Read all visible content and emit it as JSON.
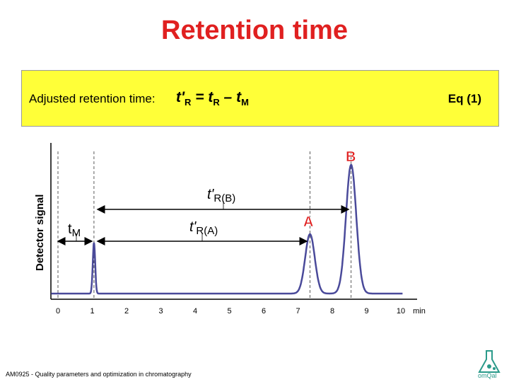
{
  "slide": {
    "title": "Retention time",
    "footer": "AM0925 - Quality parameters and optimization in chromatography"
  },
  "equation": {
    "label": "Adjusted retention time:",
    "lhs": "t'",
    "lhs_sub": "R",
    "eq": " = ",
    "t1": "t",
    "t1_sub": "R",
    "minus": " – ",
    "t2": "t",
    "t2_sub": "M",
    "number": "Eq (1)"
  },
  "chart_data": {
    "type": "line",
    "ylabel": "Detector signal",
    "x_unit": "min",
    "x_ticks": [
      "0",
      "1",
      "2",
      "3",
      "4",
      "5",
      "6",
      "7",
      "8",
      "9",
      "10"
    ],
    "xlim": [
      0,
      10
    ],
    "peaks": [
      {
        "name": "tM",
        "x": 1.05
      },
      {
        "name": "A",
        "x": 7.35
      },
      {
        "name": "B",
        "x": 8.55
      }
    ],
    "annotations": {
      "tM": {
        "t": "t",
        "sub": "M"
      },
      "tRA": {
        "t": "t'",
        "sub": "R(A)"
      },
      "tRB": {
        "t": "t'",
        "sub": "R(B)"
      },
      "A": "A",
      "B": "B"
    }
  },
  "colors": {
    "title": "#e02020",
    "peak_line": "#4a4a9a",
    "box": "#ffff38",
    "logo": "#2a9a8a"
  }
}
